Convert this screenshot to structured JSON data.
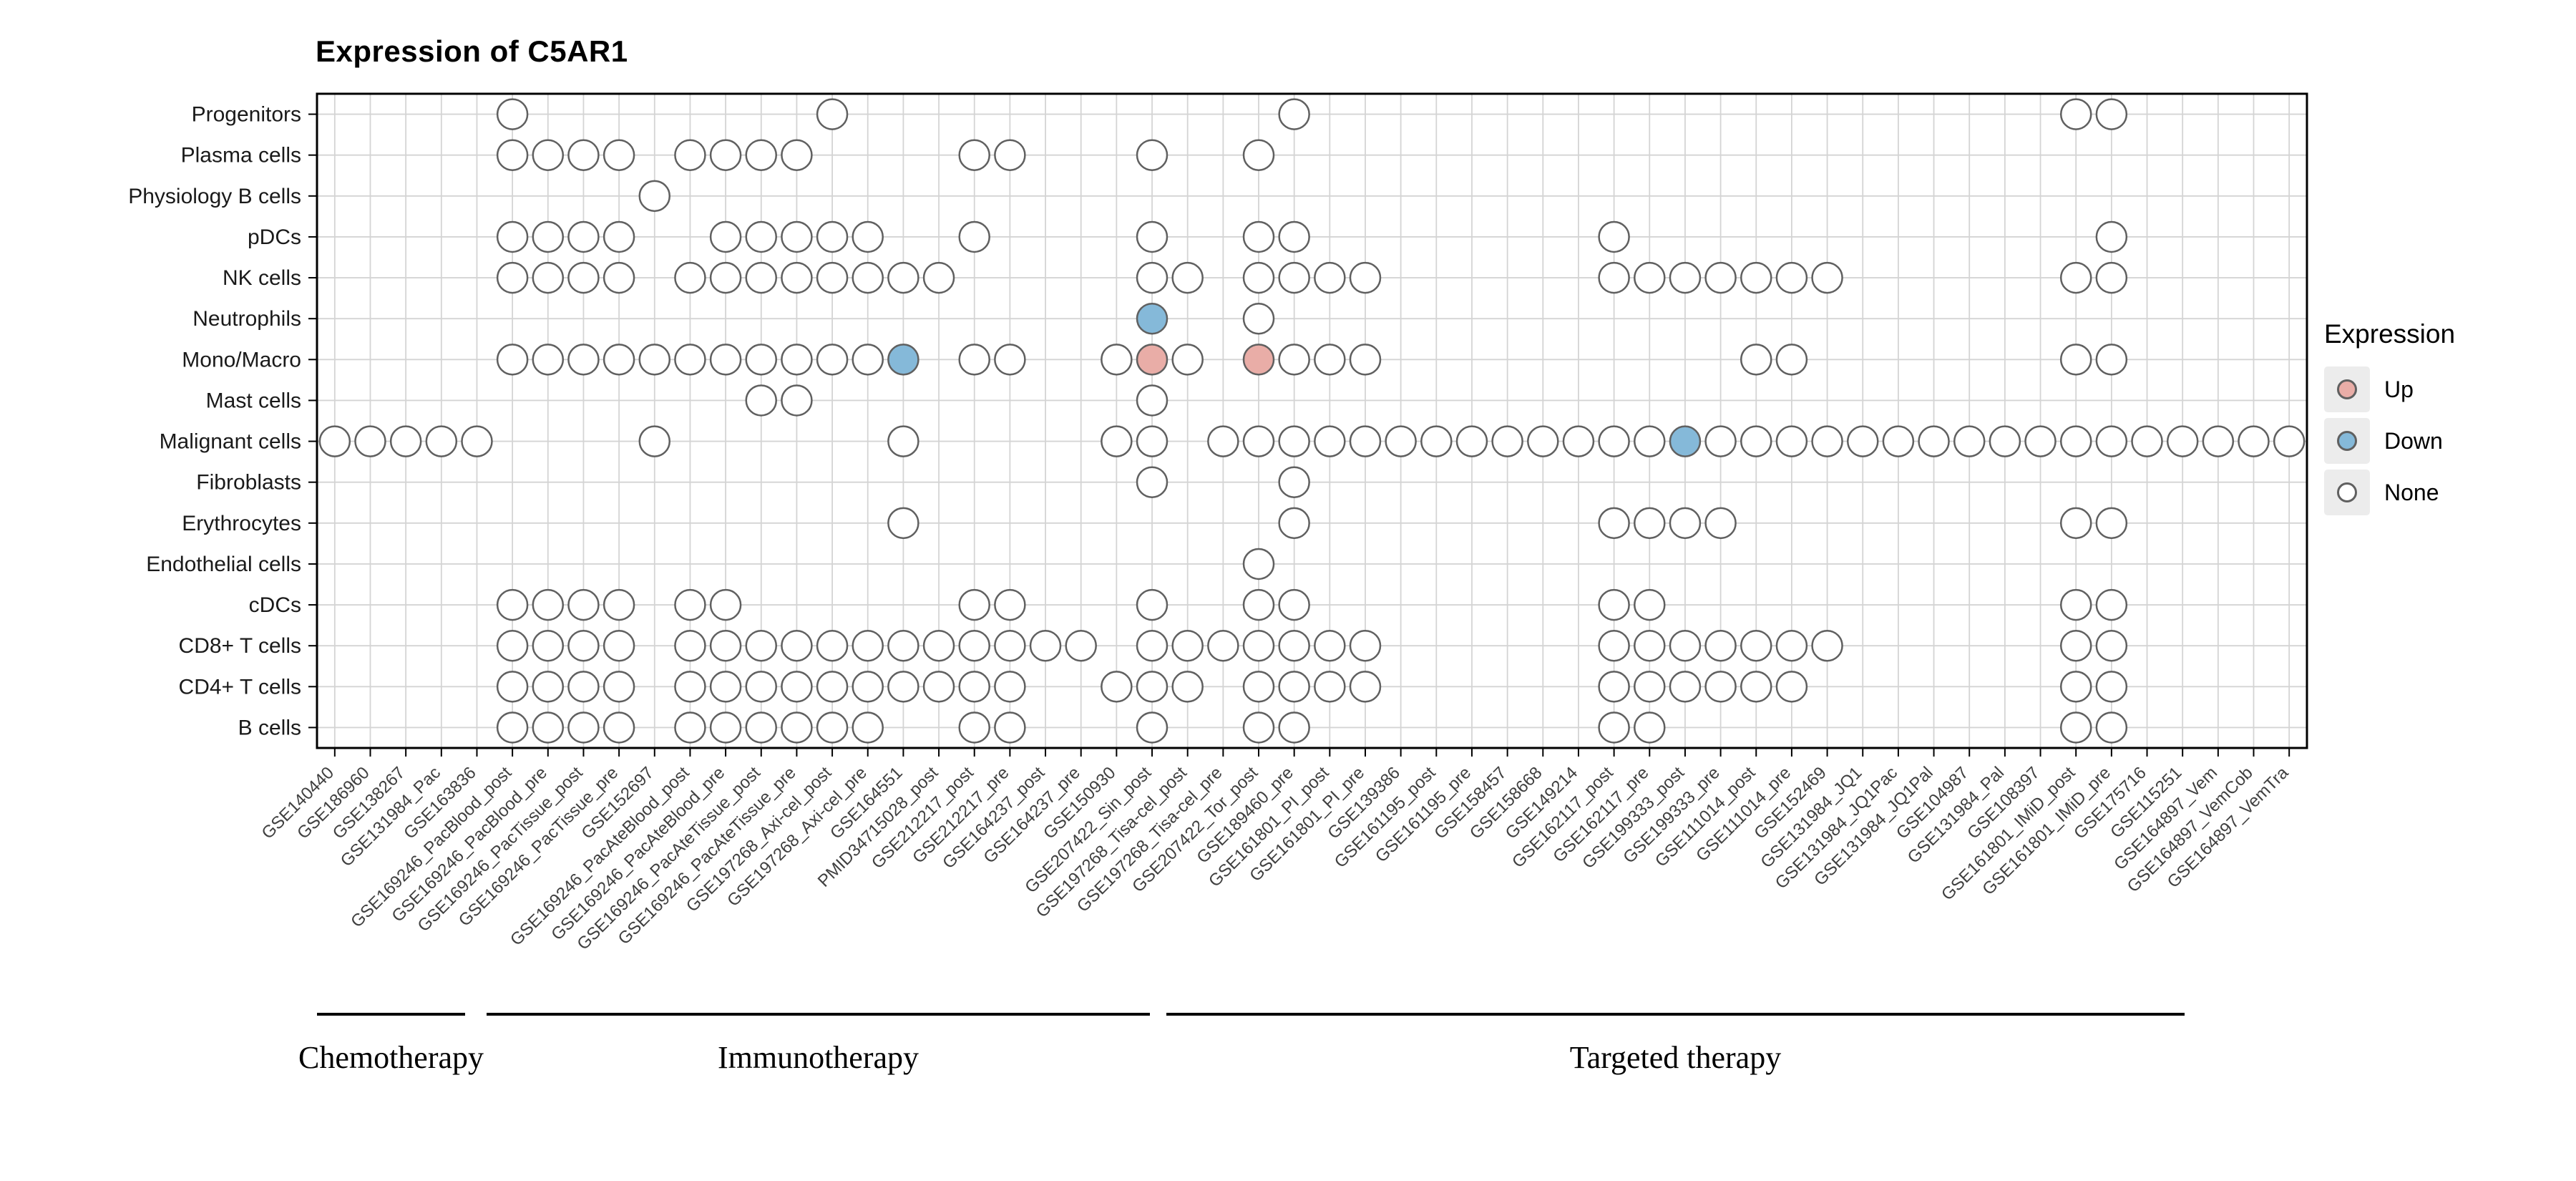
{
  "chart_data": {
    "type": "scatter",
    "title": "Expression of C5AR1",
    "legend": {
      "title": "Expression",
      "position": "right",
      "items": [
        {
          "label": "Up",
          "color": "#E9ADA7"
        },
        {
          "label": "Down",
          "color": "#85B9D9"
        },
        {
          "label": "None",
          "color": "#FFFFFF"
        }
      ]
    },
    "style": {
      "up_color": "#E9ADA7",
      "down_color": "#85B9D9",
      "none_color": "#FFFFFF",
      "dot_border": "#606060",
      "grid_color": "#D4D4D4",
      "panel_border": "#000000"
    },
    "y_categories": [
      "Progenitors",
      "Plasma cells",
      "Physiology B cells",
      "pDCs",
      "NK cells",
      "Neutrophils",
      "Mono/Macro",
      "Mast cells",
      "Malignant cells",
      "Fibroblasts",
      "Erythrocytes",
      "Endothelial cells",
      "cDCs",
      "CD8+ T cells",
      "CD4+ T cells",
      "B cells"
    ],
    "x_categories": [
      "GSE140440",
      "GSE186960",
      "GSE138267",
      "GSE131984_Pac",
      "GSE163836",
      "GSE169246_PacBlood_post",
      "GSE169246_PacBlood_pre",
      "GSE169246_PacTissue_post",
      "GSE169246_PacTissue_pre",
      "GSE152697",
      "GSE169246_PacAteBlood_post",
      "GSE169246_PacAteBlood_pre",
      "GSE169246_PacAteTissue_post",
      "GSE169246_PacAteTissue_pre",
      "GSE197268_Axi-cel_post",
      "GSE197268_Axi-cel_pre",
      "GSE164551",
      "PMID34715028_post",
      "GSE212217_post",
      "GSE212217_pre",
      "GSE164237_post",
      "GSE164237_pre",
      "GSE150930",
      "GSE207422_Sin_post",
      "GSE197268_Tisa-cel_post",
      "GSE197268_Tisa-cel_pre",
      "GSE207422_Tor_post",
      "GSE189460_pre",
      "GSE161801_PI_post",
      "GSE161801_PI_pre",
      "GSE139386",
      "GSE161195_post",
      "GSE161195_pre",
      "GSE158457",
      "GSE158668",
      "GSE149214",
      "GSE162117_post",
      "GSE162117_pre",
      "GSE199333_post",
      "GSE199333_pre",
      "GSE111014_post",
      "GSE111014_pre",
      "GSE152469",
      "GSE131984_JQ1",
      "GSE131984_JQ1Pac",
      "GSE131984_JQ1Pal",
      "GSE104987",
      "GSE131984_Pal",
      "GSE108397",
      "GSE161801_IMiD_post",
      "GSE161801_IMiD_pre",
      "GSE175716",
      "GSE115251",
      "GSE164897_Vem",
      "GSE164897_VemCob",
      "GSE164897_VemTra"
    ],
    "groups": [
      {
        "label": "Chemotherapy",
        "first_dataset_index": 0,
        "last_dataset_index": 4
      },
      {
        "label": "Immunotherapy",
        "first_dataset_index": 5,
        "last_dataset_index": 27
      },
      {
        "label": "Targeted therapy",
        "first_dataset_index": 28,
        "last_dataset_index": 55
      }
    ],
    "rows": [
      {
        "cell_type": "Progenitors",
        "none": [
          5,
          14,
          27,
          49,
          50
        ],
        "up": [],
        "down": []
      },
      {
        "cell_type": "Plasma cells",
        "none": [
          5,
          6,
          7,
          8,
          10,
          11,
          12,
          13,
          18,
          19,
          23,
          26
        ],
        "up": [],
        "down": []
      },
      {
        "cell_type": "Physiology B cells",
        "none": [
          9
        ],
        "up": [],
        "down": []
      },
      {
        "cell_type": "pDCs",
        "none": [
          5,
          6,
          7,
          8,
          11,
          12,
          13,
          14,
          15,
          18,
          23,
          26,
          27,
          36,
          50
        ],
        "up": [],
        "down": []
      },
      {
        "cell_type": "NK cells",
        "none": [
          5,
          6,
          7,
          8,
          10,
          11,
          12,
          13,
          14,
          15,
          16,
          17,
          23,
          24,
          26,
          27,
          28,
          29,
          36,
          37,
          38,
          39,
          40,
          41,
          42,
          49,
          50
        ],
        "up": [],
        "down": []
      },
      {
        "cell_type": "Neutrophils",
        "none": [
          26
        ],
        "up": [],
        "down": [
          23
        ]
      },
      {
        "cell_type": "Mono/Macro",
        "none": [
          5,
          6,
          7,
          8,
          9,
          10,
          11,
          12,
          13,
          14,
          15,
          18,
          19,
          22,
          24,
          27,
          28,
          29,
          40,
          41,
          49,
          50
        ],
        "up": [
          23,
          26
        ],
        "down": [
          16
        ]
      },
      {
        "cell_type": "Mast cells",
        "none": [
          12,
          13,
          23
        ],
        "up": [],
        "down": []
      },
      {
        "cell_type": "Malignant cells",
        "none": [
          0,
          1,
          2,
          3,
          4,
          9,
          16,
          22,
          23,
          25,
          26,
          27,
          28,
          29,
          30,
          31,
          32,
          33,
          34,
          35,
          36,
          37,
          39,
          40,
          41,
          42,
          43,
          44,
          45,
          46,
          47,
          48,
          49,
          50,
          51,
          52,
          53,
          54,
          55
        ],
        "up": [],
        "down": [
          38
        ]
      },
      {
        "cell_type": "Fibroblasts",
        "none": [
          23,
          27
        ],
        "up": [],
        "down": []
      },
      {
        "cell_type": "Erythrocytes",
        "none": [
          16,
          27,
          36,
          37,
          38,
          39,
          49,
          50
        ],
        "up": [],
        "down": []
      },
      {
        "cell_type": "Endothelial cells",
        "none": [
          26
        ],
        "up": [],
        "down": []
      },
      {
        "cell_type": "cDCs",
        "none": [
          5,
          6,
          7,
          8,
          10,
          11,
          18,
          19,
          23,
          26,
          27,
          36,
          37,
          49,
          50
        ],
        "up": [],
        "down": []
      },
      {
        "cell_type": "CD8+ T cells",
        "none": [
          5,
          6,
          7,
          8,
          10,
          11,
          12,
          13,
          14,
          15,
          16,
          17,
          18,
          19,
          20,
          21,
          23,
          24,
          25,
          26,
          27,
          28,
          29,
          36,
          37,
          38,
          39,
          40,
          41,
          42,
          49,
          50
        ],
        "up": [],
        "down": []
      },
      {
        "cell_type": "CD4+ T cells",
        "none": [
          5,
          6,
          7,
          8,
          10,
          11,
          12,
          13,
          14,
          15,
          16,
          17,
          18,
          19,
          22,
          23,
          24,
          26,
          27,
          28,
          29,
          36,
          37,
          38,
          39,
          40,
          41,
          49,
          50
        ],
        "up": [],
        "down": []
      },
      {
        "cell_type": "B cells",
        "none": [
          5,
          6,
          7,
          8,
          10,
          11,
          12,
          13,
          14,
          15,
          18,
          19,
          23,
          26,
          27,
          36,
          37,
          49,
          50
        ],
        "up": [],
        "down": []
      }
    ]
  }
}
